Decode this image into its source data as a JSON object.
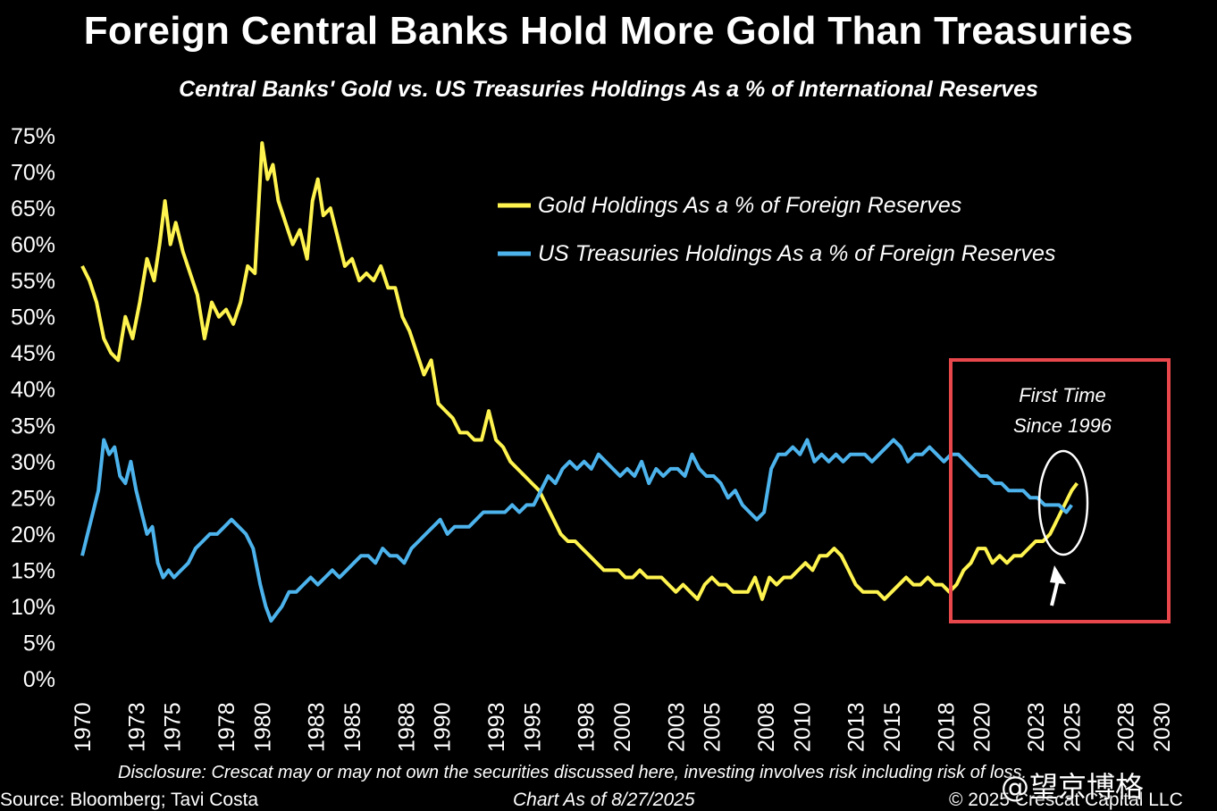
{
  "title": "Foreign Central Banks Hold More Gold Than Treasuries",
  "subtitle": "Central Banks' Gold vs. US Treasuries Holdings As a % of International Reserves",
  "disclosure": "Disclosure: Crescat may or may not own the securities discussed here, investing involves risk including risk of loss.",
  "source": "Source: Bloomberg; Tavi Costa",
  "as_of": "Chart As of 8/27/2025",
  "copyright": "© 2025 Crescat Capital LLC",
  "watermark": "@望京博格",
  "annotation": {
    "line1": "First Time",
    "line2": "Since 1996"
  },
  "colors": {
    "gold": "#FFF44F",
    "treasuries": "#4DB3EC",
    "highlight_box": "#E8474C",
    "background": "#000000"
  },
  "chart_data": {
    "type": "line",
    "title": "Central Banks' Gold vs. US Treasuries Holdings As a % of International Reserves",
    "xlim": [
      1970,
      2030
    ],
    "ylim": [
      0,
      75
    ],
    "x_ticks": [
      1970,
      1973,
      1975,
      1978,
      1980,
      1983,
      1985,
      1988,
      1990,
      1993,
      1995,
      1998,
      2000,
      2003,
      2005,
      2008,
      2010,
      2013,
      2015,
      2018,
      2020,
      2023,
      2025,
      2028,
      2030
    ],
    "y_ticks": [
      "0%",
      "5%",
      "10%",
      "15%",
      "20%",
      "25%",
      "30%",
      "35%",
      "40%",
      "45%",
      "50%",
      "55%",
      "60%",
      "65%",
      "70%",
      "75%"
    ],
    "legend_position": "top-right",
    "grid": false,
    "series": [
      {
        "name": "Gold Holdings As a % of Foreign Reserves",
        "color": "#FFF44F",
        "points": [
          [
            1970.0,
            57
          ],
          [
            1970.4,
            55
          ],
          [
            1970.8,
            52
          ],
          [
            1971.2,
            47
          ],
          [
            1971.6,
            45
          ],
          [
            1972.0,
            44
          ],
          [
            1972.4,
            50
          ],
          [
            1972.8,
            47
          ],
          [
            1973.2,
            52
          ],
          [
            1973.6,
            58
          ],
          [
            1974.0,
            55
          ],
          [
            1974.3,
            60
          ],
          [
            1974.6,
            66
          ],
          [
            1974.9,
            60
          ],
          [
            1975.2,
            63
          ],
          [
            1975.6,
            59
          ],
          [
            1976.0,
            56
          ],
          [
            1976.4,
            53
          ],
          [
            1976.8,
            47
          ],
          [
            1977.2,
            52
          ],
          [
            1977.6,
            50
          ],
          [
            1978.0,
            51
          ],
          [
            1978.4,
            49
          ],
          [
            1978.8,
            52
          ],
          [
            1979.2,
            57
          ],
          [
            1979.6,
            56
          ],
          [
            1980.0,
            74
          ],
          [
            1980.3,
            69
          ],
          [
            1980.6,
            71
          ],
          [
            1980.9,
            66
          ],
          [
            1981.3,
            63
          ],
          [
            1981.7,
            60
          ],
          [
            1982.1,
            62
          ],
          [
            1982.5,
            58
          ],
          [
            1982.8,
            66
          ],
          [
            1983.1,
            69
          ],
          [
            1983.4,
            64
          ],
          [
            1983.8,
            65
          ],
          [
            1984.2,
            61
          ],
          [
            1984.6,
            57
          ],
          [
            1985.0,
            58
          ],
          [
            1985.4,
            55
          ],
          [
            1985.8,
            56
          ],
          [
            1986.2,
            55
          ],
          [
            1986.6,
            57
          ],
          [
            1987.0,
            54
          ],
          [
            1987.4,
            54
          ],
          [
            1987.8,
            50
          ],
          [
            1988.2,
            48
          ],
          [
            1988.6,
            45
          ],
          [
            1989.0,
            42
          ],
          [
            1989.4,
            44
          ],
          [
            1989.8,
            38
          ],
          [
            1990.2,
            37
          ],
          [
            1990.6,
            36
          ],
          [
            1991.0,
            34
          ],
          [
            1991.4,
            34
          ],
          [
            1991.8,
            33
          ],
          [
            1992.2,
            33
          ],
          [
            1992.6,
            37
          ],
          [
            1993.0,
            33
          ],
          [
            1993.4,
            32
          ],
          [
            1993.8,
            30
          ],
          [
            1994.2,
            29
          ],
          [
            1994.6,
            28
          ],
          [
            1995.0,
            27
          ],
          [
            1995.4,
            26
          ],
          [
            1995.8,
            24
          ],
          [
            1996.2,
            22
          ],
          [
            1996.6,
            20
          ],
          [
            1997.0,
            19
          ],
          [
            1997.4,
            19
          ],
          [
            1997.8,
            18
          ],
          [
            1998.2,
            17
          ],
          [
            1998.6,
            16
          ],
          [
            1999.0,
            15
          ],
          [
            1999.4,
            15
          ],
          [
            1999.8,
            15
          ],
          [
            2000.2,
            14
          ],
          [
            2000.6,
            14
          ],
          [
            2001.0,
            15
          ],
          [
            2001.4,
            14
          ],
          [
            2001.8,
            14
          ],
          [
            2002.2,
            14
          ],
          [
            2002.6,
            13
          ],
          [
            2003.0,
            12
          ],
          [
            2003.4,
            13
          ],
          [
            2003.8,
            12
          ],
          [
            2004.2,
            11
          ],
          [
            2004.6,
            13
          ],
          [
            2005.0,
            14
          ],
          [
            2005.4,
            13
          ],
          [
            2005.8,
            13
          ],
          [
            2006.2,
            12
          ],
          [
            2006.6,
            12
          ],
          [
            2007.0,
            12
          ],
          [
            2007.4,
            14
          ],
          [
            2007.8,
            11
          ],
          [
            2008.2,
            14
          ],
          [
            2008.6,
            13
          ],
          [
            2009.0,
            14
          ],
          [
            2009.4,
            14
          ],
          [
            2009.8,
            15
          ],
          [
            2010.2,
            16
          ],
          [
            2010.6,
            15
          ],
          [
            2011.0,
            17
          ],
          [
            2011.4,
            17
          ],
          [
            2011.8,
            18
          ],
          [
            2012.2,
            17
          ],
          [
            2012.6,
            15
          ],
          [
            2013.0,
            13
          ],
          [
            2013.4,
            12
          ],
          [
            2013.8,
            12
          ],
          [
            2014.2,
            12
          ],
          [
            2014.6,
            11
          ],
          [
            2015.0,
            12
          ],
          [
            2015.4,
            13
          ],
          [
            2015.8,
            14
          ],
          [
            2016.2,
            13
          ],
          [
            2016.6,
            13
          ],
          [
            2017.0,
            14
          ],
          [
            2017.4,
            13
          ],
          [
            2017.8,
            13
          ],
          [
            2018.2,
            12
          ],
          [
            2018.6,
            13
          ],
          [
            2019.0,
            15
          ],
          [
            2019.4,
            16
          ],
          [
            2019.8,
            18
          ],
          [
            2020.2,
            18
          ],
          [
            2020.6,
            16
          ],
          [
            2021.0,
            17
          ],
          [
            2021.4,
            16
          ],
          [
            2021.8,
            17
          ],
          [
            2022.2,
            17
          ],
          [
            2022.6,
            18
          ],
          [
            2023.0,
            19
          ],
          [
            2023.4,
            19
          ],
          [
            2023.8,
            20
          ],
          [
            2024.2,
            22
          ],
          [
            2024.6,
            24
          ],
          [
            2025.0,
            26
          ],
          [
            2025.3,
            27
          ]
        ]
      },
      {
        "name": "US Treasuries Holdings As a % of Foreign Reserves",
        "color": "#4DB3EC",
        "points": [
          [
            1970.0,
            17
          ],
          [
            1970.3,
            20
          ],
          [
            1970.6,
            23
          ],
          [
            1970.9,
            26
          ],
          [
            1971.2,
            33
          ],
          [
            1971.5,
            31
          ],
          [
            1971.8,
            32
          ],
          [
            1972.1,
            28
          ],
          [
            1972.4,
            27
          ],
          [
            1972.7,
            30
          ],
          [
            1973.0,
            26
          ],
          [
            1973.3,
            23
          ],
          [
            1973.6,
            20
          ],
          [
            1973.9,
            21
          ],
          [
            1974.2,
            16
          ],
          [
            1974.5,
            14
          ],
          [
            1974.8,
            15
          ],
          [
            1975.1,
            14
          ],
          [
            1975.5,
            15
          ],
          [
            1975.9,
            16
          ],
          [
            1976.3,
            18
          ],
          [
            1976.7,
            19
          ],
          [
            1977.1,
            20
          ],
          [
            1977.5,
            20
          ],
          [
            1977.9,
            21
          ],
          [
            1978.3,
            22
          ],
          [
            1978.7,
            21
          ],
          [
            1979.1,
            20
          ],
          [
            1979.5,
            18
          ],
          [
            1979.9,
            13
          ],
          [
            1980.2,
            10
          ],
          [
            1980.5,
            8
          ],
          [
            1980.8,
            9
          ],
          [
            1981.1,
            10
          ],
          [
            1981.5,
            12
          ],
          [
            1981.9,
            12
          ],
          [
            1982.3,
            13
          ],
          [
            1982.7,
            14
          ],
          [
            1983.1,
            13
          ],
          [
            1983.5,
            14
          ],
          [
            1983.9,
            15
          ],
          [
            1984.3,
            14
          ],
          [
            1984.7,
            15
          ],
          [
            1985.1,
            16
          ],
          [
            1985.5,
            17
          ],
          [
            1985.9,
            17
          ],
          [
            1986.3,
            16
          ],
          [
            1986.7,
            18
          ],
          [
            1987.1,
            17
          ],
          [
            1987.5,
            17
          ],
          [
            1987.9,
            16
          ],
          [
            1988.3,
            18
          ],
          [
            1988.7,
            19
          ],
          [
            1989.1,
            20
          ],
          [
            1989.5,
            21
          ],
          [
            1989.9,
            22
          ],
          [
            1990.3,
            20
          ],
          [
            1990.7,
            21
          ],
          [
            1991.1,
            21
          ],
          [
            1991.5,
            21
          ],
          [
            1991.9,
            22
          ],
          [
            1992.3,
            23
          ],
          [
            1992.7,
            23
          ],
          [
            1993.1,
            23
          ],
          [
            1993.5,
            23
          ],
          [
            1993.9,
            24
          ],
          [
            1994.3,
            23
          ],
          [
            1994.7,
            24
          ],
          [
            1995.1,
            24
          ],
          [
            1995.5,
            26
          ],
          [
            1995.9,
            28
          ],
          [
            1996.3,
            27
          ],
          [
            1996.7,
            29
          ],
          [
            1997.1,
            30
          ],
          [
            1997.5,
            29
          ],
          [
            1997.9,
            30
          ],
          [
            1998.3,
            29
          ],
          [
            1998.7,
            31
          ],
          [
            1999.1,
            30
          ],
          [
            1999.5,
            29
          ],
          [
            1999.9,
            28
          ],
          [
            2000.3,
            29
          ],
          [
            2000.7,
            28
          ],
          [
            2001.1,
            30
          ],
          [
            2001.5,
            27
          ],
          [
            2001.9,
            29
          ],
          [
            2002.3,
            28
          ],
          [
            2002.7,
            29
          ],
          [
            2003.1,
            29
          ],
          [
            2003.5,
            28
          ],
          [
            2003.9,
            31
          ],
          [
            2004.3,
            29
          ],
          [
            2004.7,
            28
          ],
          [
            2005.1,
            28
          ],
          [
            2005.5,
            27
          ],
          [
            2005.9,
            25
          ],
          [
            2006.3,
            26
          ],
          [
            2006.7,
            24
          ],
          [
            2007.1,
            23
          ],
          [
            2007.5,
            22
          ],
          [
            2007.9,
            23
          ],
          [
            2008.3,
            29
          ],
          [
            2008.7,
            31
          ],
          [
            2009.1,
            31
          ],
          [
            2009.5,
            32
          ],
          [
            2009.9,
            31
          ],
          [
            2010.3,
            33
          ],
          [
            2010.7,
            30
          ],
          [
            2011.1,
            31
          ],
          [
            2011.5,
            30
          ],
          [
            2011.9,
            31
          ],
          [
            2012.3,
            30
          ],
          [
            2012.7,
            31
          ],
          [
            2013.1,
            31
          ],
          [
            2013.5,
            31
          ],
          [
            2013.9,
            30
          ],
          [
            2014.3,
            31
          ],
          [
            2014.7,
            32
          ],
          [
            2015.1,
            33
          ],
          [
            2015.5,
            32
          ],
          [
            2015.9,
            30
          ],
          [
            2016.3,
            31
          ],
          [
            2016.7,
            31
          ],
          [
            2017.1,
            32
          ],
          [
            2017.5,
            31
          ],
          [
            2017.9,
            30
          ],
          [
            2018.3,
            31
          ],
          [
            2018.7,
            31
          ],
          [
            2019.1,
            30
          ],
          [
            2019.5,
            29
          ],
          [
            2019.9,
            28
          ],
          [
            2020.3,
            28
          ],
          [
            2020.7,
            27
          ],
          [
            2021.1,
            27
          ],
          [
            2021.5,
            26
          ],
          [
            2021.9,
            26
          ],
          [
            2022.3,
            26
          ],
          [
            2022.7,
            25
          ],
          [
            2023.1,
            25
          ],
          [
            2023.5,
            24
          ],
          [
            2023.9,
            24
          ],
          [
            2024.3,
            24
          ],
          [
            2024.7,
            23
          ],
          [
            2025.0,
            24
          ]
        ]
      }
    ]
  }
}
